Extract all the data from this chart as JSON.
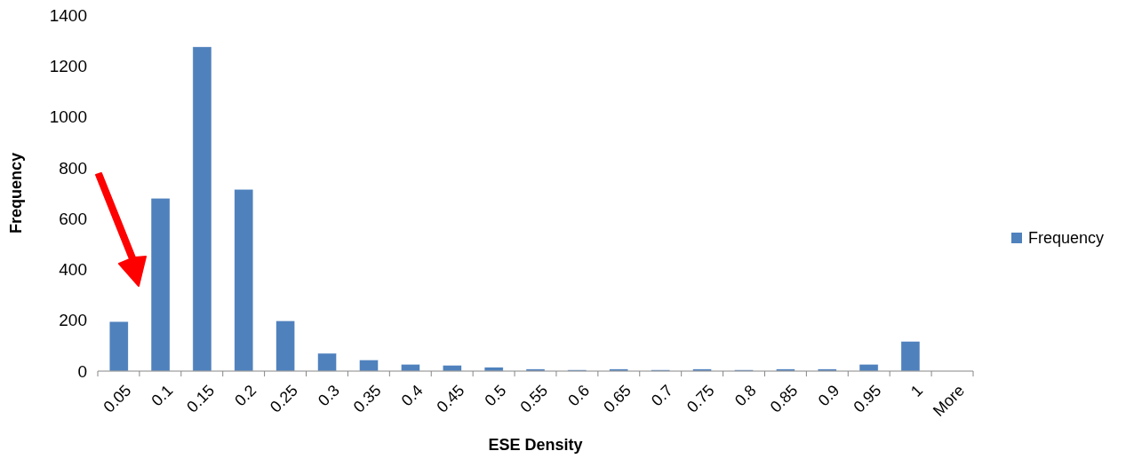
{
  "chart_data": {
    "type": "bar",
    "xlabel": "ESE Density",
    "ylabel": "Frequency",
    "categories": [
      "0.05",
      "0.1",
      "0.15",
      "0.2",
      "0.25",
      "0.3",
      "0.35",
      "0.4",
      "0.45",
      "0.5",
      "0.55",
      "0.6",
      "0.65",
      "0.7",
      "0.75",
      "0.8",
      "0.85",
      "0.9",
      "0.95",
      "1",
      "More"
    ],
    "series": [
      {
        "name": "Frequency",
        "color": "#4f81bd",
        "values": [
          195,
          680,
          1275,
          715,
          198,
          70,
          44,
          27,
          23,
          15,
          8,
          5,
          8,
          5,
          8,
          5,
          8,
          8,
          27,
          117,
          0
        ]
      }
    ],
    "ylim": [
      0,
      1400
    ],
    "yticks": [
      0,
      200,
      400,
      600,
      800,
      1000,
      1200,
      1400
    ],
    "grid": false,
    "legend": "right"
  }
}
